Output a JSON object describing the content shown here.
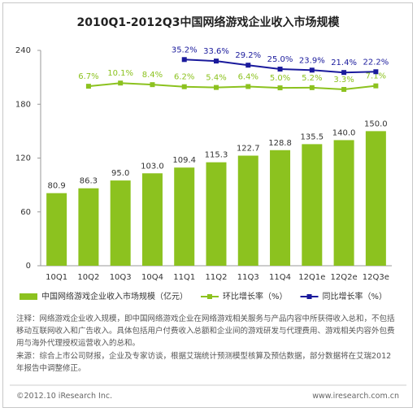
{
  "chart_data": {
    "type": "bar",
    "title": "2010Q1-2012Q3中国网络游戏企业收入市场规模",
    "categories": [
      "10Q1",
      "10Q2",
      "10Q3",
      "10Q4",
      "11Q1",
      "11Q2",
      "11Q3",
      "11Q4",
      "12Q1e",
      "12Q2e",
      "12Q3e"
    ],
    "ylim": [
      0,
      240
    ],
    "yticks": [
      0,
      60,
      120,
      180,
      240
    ],
    "y2lim": [
      -185,
      45
    ],
    "series": [
      {
        "name": "中国网络游戏企业收入市场规模（亿元）",
        "type": "bar",
        "color": "#8cc21f",
        "values": [
          80.9,
          86.3,
          95.0,
          103.0,
          109.4,
          115.3,
          122.7,
          128.8,
          135.5,
          140.0,
          150.0
        ],
        "value_labels": [
          "80.9",
          "86.3",
          "95.0",
          "103.0",
          "109.4",
          "115.3",
          "122.7",
          "128.8",
          "135.5",
          "140.0",
          "150.0"
        ]
      },
      {
        "name": "环比增长率（%）",
        "type": "line",
        "axis": "y2",
        "color": "#8cc21f",
        "values": [
          null,
          6.7,
          10.1,
          8.4,
          6.2,
          5.4,
          6.4,
          5.0,
          5.2,
          3.3,
          7.1
        ],
        "value_labels": [
          null,
          "6.7%",
          "10.1%",
          "8.4%",
          "6.2%",
          "5.4%",
          "6.4%",
          "5.0%",
          "5.2%",
          "3.3%",
          "7.1%"
        ]
      },
      {
        "name": "同比增长率（%）",
        "type": "line",
        "axis": "y2",
        "color": "#1a1a9c",
        "values": [
          null,
          null,
          null,
          null,
          35.2,
          33.6,
          29.2,
          25.0,
          23.9,
          21.4,
          22.2
        ],
        "value_labels": [
          null,
          null,
          null,
          null,
          "35.2%",
          "33.6%",
          "29.2%",
          "25.0%",
          "23.9%",
          "21.4%",
          "22.2%"
        ]
      }
    ]
  },
  "notes": [
    "注释：网络游戏企业收入规模，即中国网络游戏企业在网络游戏相关服务与产品内容中所获得收入总和，不包括移动互联网收入和广告收入。具体包括用户付费收入总额和企业间的游戏研发与代理费用、游戏相关内容外包费用与海外代理授权运营收入的总和。",
    "来源：综合上市公司财报，企业及专家访谈，根据艾瑞统计预测模型核算及预估数据，部分数据将在艾瑞2012年报告中调整修正。"
  ],
  "footer": {
    "left": "©2012.10 iResearch Inc.",
    "right": "www.iresearch.com.cn"
  }
}
